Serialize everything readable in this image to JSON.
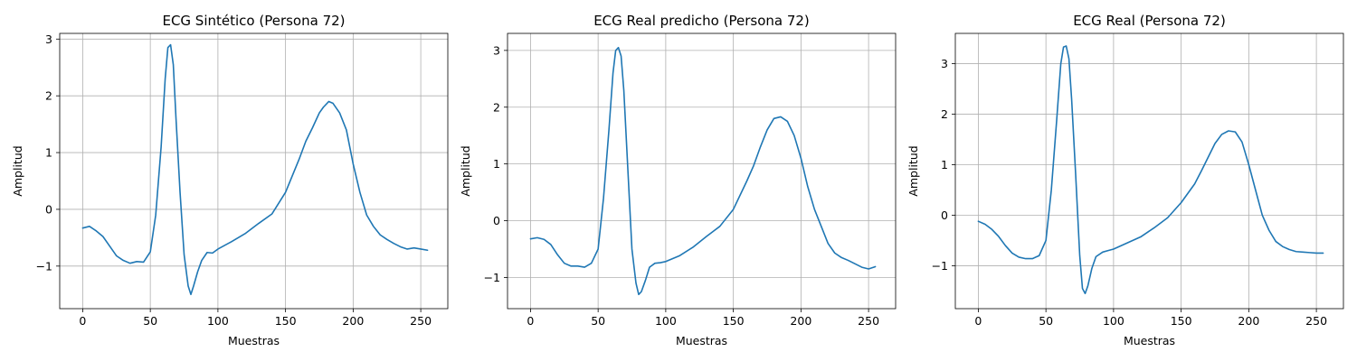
{
  "chart_data": [
    {
      "type": "line",
      "title": "ECG Sintético (Persona 72)",
      "xlabel": "Muestras",
      "ylabel": "Amplitud",
      "xlim": [
        -17,
        270
      ],
      "ylim": [
        -1.75,
        3.1
      ],
      "xticks": [
        0,
        50,
        100,
        150,
        200,
        250
      ],
      "yticks": [
        -1,
        0,
        1,
        2,
        3
      ],
      "grid": true,
      "color": "#1f77b4",
      "series": [
        {
          "x": [
            0,
            5,
            10,
            15,
            20,
            25,
            30,
            35,
            40,
            45,
            50,
            54,
            58,
            61,
            63,
            65,
            67,
            69,
            72,
            75,
            78,
            80,
            82,
            85,
            88,
            92,
            96,
            100,
            110,
            120,
            130,
            140,
            150,
            160,
            165,
            170,
            175,
            178,
            182,
            185,
            190,
            195,
            200,
            205,
            210,
            215,
            220,
            225,
            230,
            235,
            240,
            245,
            250,
            255
          ],
          "y": [
            -0.33,
            -0.3,
            -0.38,
            -0.48,
            -0.65,
            -0.82,
            -0.9,
            -0.95,
            -0.92,
            -0.93,
            -0.75,
            -0.1,
            1.1,
            2.3,
            2.85,
            2.9,
            2.55,
            1.6,
            0.3,
            -0.8,
            -1.35,
            -1.5,
            -1.35,
            -1.1,
            -0.9,
            -0.76,
            -0.77,
            -0.7,
            -0.57,
            -0.43,
            -0.25,
            -0.08,
            0.3,
            0.88,
            1.2,
            1.44,
            1.7,
            1.8,
            1.9,
            1.87,
            1.7,
            1.4,
            0.8,
            0.3,
            -0.1,
            -0.3,
            -0.45,
            -0.53,
            -0.6,
            -0.66,
            -0.7,
            -0.68,
            -0.7,
            -0.72
          ]
        }
      ]
    },
    {
      "type": "line",
      "title": "ECG Real predicho (Persona 72)",
      "xlabel": "Muestras",
      "ylabel": "Amplitud",
      "xlim": [
        -17,
        270
      ],
      "ylim": [
        -1.55,
        3.3
      ],
      "xticks": [
        0,
        50,
        100,
        150,
        200,
        250
      ],
      "yticks": [
        -1,
        0,
        1,
        2,
        3
      ],
      "grid": true,
      "color": "#1f77b4",
      "series": [
        {
          "x": [
            0,
            5,
            10,
            15,
            20,
            25,
            30,
            35,
            40,
            45,
            50,
            54,
            58,
            61,
            63,
            65,
            67,
            69,
            72,
            75,
            78,
            80,
            82,
            85,
            88,
            92,
            96,
            100,
            110,
            120,
            130,
            140,
            150,
            160,
            165,
            170,
            175,
            180,
            185,
            190,
            195,
            200,
            205,
            210,
            215,
            220,
            225,
            230,
            235,
            240,
            245,
            250,
            255
          ],
          "y": [
            -0.32,
            -0.3,
            -0.33,
            -0.42,
            -0.6,
            -0.75,
            -0.8,
            -0.8,
            -0.82,
            -0.75,
            -0.5,
            0.4,
            1.6,
            2.6,
            3.0,
            3.05,
            2.9,
            2.3,
            0.9,
            -0.5,
            -1.1,
            -1.3,
            -1.25,
            -1.05,
            -0.82,
            -0.75,
            -0.74,
            -0.72,
            -0.62,
            -0.47,
            -0.28,
            -0.1,
            0.2,
            0.7,
            0.97,
            1.3,
            1.6,
            1.8,
            1.83,
            1.75,
            1.5,
            1.1,
            0.6,
            0.2,
            -0.1,
            -0.4,
            -0.57,
            -0.65,
            -0.7,
            -0.76,
            -0.82,
            -0.85,
            -0.81
          ]
        }
      ]
    },
    {
      "type": "line",
      "title": "ECG Real (Persona 72)",
      "xlabel": "Muestras",
      "ylabel": "Amplitud",
      "xlim": [
        -17,
        270
      ],
      "ylim": [
        -1.85,
        3.6
      ],
      "xticks": [
        0,
        50,
        100,
        150,
        200,
        250
      ],
      "yticks": [
        -1,
        0,
        1,
        2,
        3
      ],
      "grid": true,
      "color": "#1f77b4",
      "series": [
        {
          "x": [
            0,
            5,
            10,
            15,
            20,
            25,
            30,
            35,
            40,
            45,
            50,
            54,
            58,
            61,
            63,
            65,
            67,
            69,
            72,
            75,
            77,
            79,
            81,
            84,
            87,
            92,
            96,
            100,
            110,
            120,
            130,
            140,
            150,
            160,
            165,
            170,
            175,
            180,
            185,
            190,
            195,
            200,
            205,
            210,
            215,
            220,
            225,
            230,
            235,
            240,
            245,
            250,
            255
          ],
          "y": [
            -0.12,
            -0.18,
            -0.28,
            -0.42,
            -0.6,
            -0.75,
            -0.83,
            -0.86,
            -0.86,
            -0.8,
            -0.5,
            0.5,
            1.9,
            3.0,
            3.33,
            3.35,
            3.1,
            2.3,
            0.8,
            -0.8,
            -1.45,
            -1.55,
            -1.4,
            -1.05,
            -0.82,
            -0.73,
            -0.7,
            -0.67,
            -0.55,
            -0.43,
            -0.25,
            -0.05,
            0.25,
            0.62,
            0.88,
            1.15,
            1.42,
            1.6,
            1.67,
            1.65,
            1.45,
            1.0,
            0.5,
            0.0,
            -0.3,
            -0.52,
            -0.62,
            -0.68,
            -0.72,
            -0.73,
            -0.74,
            -0.75,
            -0.75
          ]
        }
      ]
    }
  ]
}
